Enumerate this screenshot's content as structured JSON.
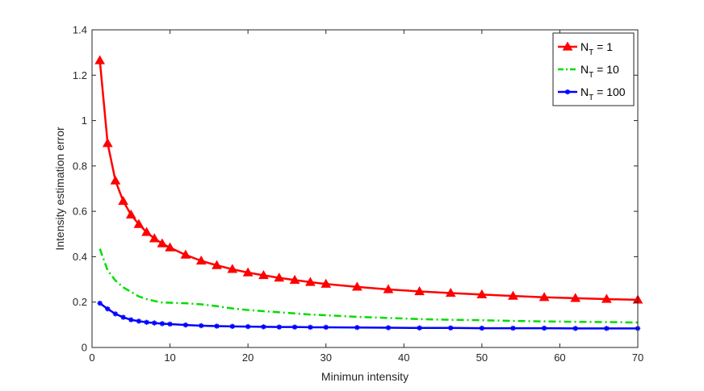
{
  "chart_data": {
    "type": "line",
    "xlabel": "Minimun intensity",
    "ylabel": "Intensity estimation error",
    "xlim": [
      0,
      70
    ],
    "ylim": [
      0,
      1.4
    ],
    "x_ticks": [
      "0",
      "10",
      "20",
      "30",
      "40",
      "50",
      "60",
      "70"
    ],
    "y_ticks": [
      "0",
      "0.2",
      "0.4",
      "0.6",
      "0.8",
      "1",
      "1.2",
      "1.4"
    ],
    "grid": false,
    "legend_position": "top-right",
    "series": [
      {
        "name": "N_T = 1",
        "legend_main": "N",
        "legend_sub": "T",
        "legend_rest": " = 1",
        "color": "#ff0000",
        "line_style": "solid",
        "marker": "triangle",
        "x": [
          1,
          2,
          3,
          4,
          5,
          6,
          7,
          8,
          9,
          10,
          12,
          14,
          16,
          18,
          20,
          22,
          24,
          26,
          28,
          30,
          34,
          38,
          42,
          46,
          50,
          54,
          58,
          62,
          66,
          70
        ],
        "y": [
          1.265,
          0.9,
          0.735,
          0.645,
          0.585,
          0.543,
          0.508,
          0.48,
          0.458,
          0.44,
          0.408,
          0.382,
          0.362,
          0.345,
          0.33,
          0.318,
          0.307,
          0.297,
          0.288,
          0.28,
          0.267,
          0.256,
          0.247,
          0.24,
          0.233,
          0.227,
          0.221,
          0.217,
          0.213,
          0.21
        ]
      },
      {
        "name": "N_T = 10",
        "legend_main": "N",
        "legend_sub": "T",
        "legend_rest": " = 10",
        "color": "#00dd00",
        "line_style": "dashdot",
        "marker": "none",
        "x": [
          1,
          2,
          3,
          4,
          5,
          6,
          7,
          8,
          9,
          10,
          12,
          14,
          16,
          18,
          20,
          22,
          24,
          26,
          28,
          30,
          34,
          38,
          42,
          46,
          50,
          54,
          58,
          62,
          66,
          70
        ],
        "y": [
          0.435,
          0.34,
          0.295,
          0.265,
          0.245,
          0.225,
          0.213,
          0.205,
          0.198,
          0.197,
          0.195,
          0.19,
          0.182,
          0.172,
          0.165,
          0.16,
          0.155,
          0.15,
          0.145,
          0.142,
          0.135,
          0.13,
          0.125,
          0.122,
          0.12,
          0.117,
          0.115,
          0.113,
          0.112,
          0.11
        ]
      },
      {
        "name": "N_T = 100",
        "legend_main": "N",
        "legend_sub": "T",
        "legend_rest": " = 100",
        "color": "#0000ff",
        "line_style": "solid",
        "marker": "star",
        "x": [
          1,
          2,
          3,
          4,
          5,
          6,
          7,
          8,
          9,
          10,
          12,
          14,
          16,
          18,
          20,
          22,
          24,
          26,
          28,
          30,
          34,
          38,
          42,
          46,
          50,
          54,
          58,
          62,
          66,
          70
        ],
        "y": [
          0.195,
          0.17,
          0.148,
          0.133,
          0.122,
          0.116,
          0.111,
          0.108,
          0.105,
          0.103,
          0.099,
          0.096,
          0.094,
          0.093,
          0.092,
          0.091,
          0.09,
          0.09,
          0.089,
          0.089,
          0.088,
          0.087,
          0.086,
          0.086,
          0.085,
          0.085,
          0.085,
          0.084,
          0.084,
          0.084
        ]
      }
    ]
  }
}
